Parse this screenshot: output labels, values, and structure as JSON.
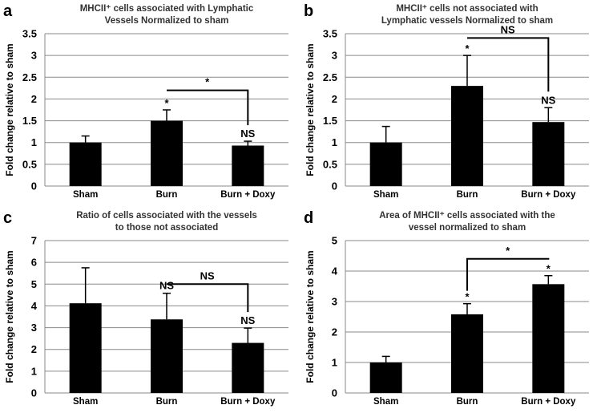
{
  "colors": {
    "bar": "#000000",
    "grid": "#8a8a8a",
    "text": "#000000"
  },
  "chart_data": [
    {
      "panel": "a",
      "type": "bar",
      "title_lines": [
        "MHCII⁺ cells associated with Lymphatic",
        "Vessels Normalized to sham"
      ],
      "ylabel": "Fold change relative to sham",
      "xlabel": "",
      "categories": [
        "Sham",
        "Burn",
        "Burn + Doxy"
      ],
      "values": [
        1.0,
        1.5,
        0.93
      ],
      "errors": [
        0.15,
        0.25,
        0.1
      ],
      "ylim": [
        0,
        3.5
      ],
      "yticks": [
        "0",
        "0.5",
        "1",
        "1.5",
        "2",
        "2.5",
        "3",
        "3.5"
      ],
      "grid": true,
      "bar_marks": [
        "",
        "*",
        "NS"
      ],
      "bracket": {
        "from": 1,
        "to": 2,
        "y": 2.2,
        "label": "*"
      }
    },
    {
      "panel": "b",
      "type": "bar",
      "title_lines": [
        "MHCII⁺ cells not associated with",
        "Lymphatic vessels Normalized to sham"
      ],
      "ylabel": "Fold change relative to sham",
      "xlabel": "",
      "categories": [
        "Sham",
        "Burn",
        "Burn + Doxy"
      ],
      "values": [
        1.0,
        2.3,
        1.47
      ],
      "errors": [
        0.37,
        0.7,
        0.33
      ],
      "ylim": [
        0,
        3.5
      ],
      "yticks": [
        "0",
        "0.5",
        "1",
        "1.5",
        "2",
        "2.5",
        "3",
        "3.5"
      ],
      "grid": true,
      "bar_marks": [
        "",
        "*",
        "NS"
      ],
      "bracket": {
        "from": 1,
        "to": 2,
        "y": 3.4,
        "label": "NS"
      }
    },
    {
      "panel": "c",
      "type": "bar",
      "title_lines": [
        "Ratio of cells associated with the vessels",
        "to those not associated"
      ],
      "ylabel": "Fold change relative to sham",
      "xlabel": "",
      "categories": [
        "Sham",
        "Burn",
        "Burn + Doxy"
      ],
      "values": [
        4.12,
        3.38,
        2.3
      ],
      "errors": [
        1.63,
        1.2,
        0.68
      ],
      "ylim": [
        0,
        7
      ],
      "yticks": [
        "0",
        "1",
        "2",
        "3",
        "4",
        "5",
        "6",
        "7"
      ],
      "grid": true,
      "bar_marks": [
        "",
        "NS",
        "NS"
      ],
      "bracket": {
        "from": 1,
        "to": 2,
        "y": 5.0,
        "label": "NS"
      }
    },
    {
      "panel": "d",
      "type": "bar",
      "title_lines": [
        "Area of MHCII⁺ cells associated with the",
        "vessel normalized to sham"
      ],
      "ylabel": "Fold change relative to sham",
      "xlabel": "",
      "categories": [
        "Sham",
        "Burn",
        "Burn + Doxy"
      ],
      "values": [
        1.0,
        2.58,
        3.57
      ],
      "errors": [
        0.2,
        0.35,
        0.28
      ],
      "ylim": [
        0,
        5
      ],
      "yticks": [
        "0",
        "1",
        "2",
        "3",
        "4",
        "5"
      ],
      "grid": true,
      "bar_marks": [
        "",
        "*",
        "*"
      ],
      "bracket": {
        "from": 1,
        "to": 2,
        "y": 4.4,
        "label": "*"
      }
    }
  ]
}
